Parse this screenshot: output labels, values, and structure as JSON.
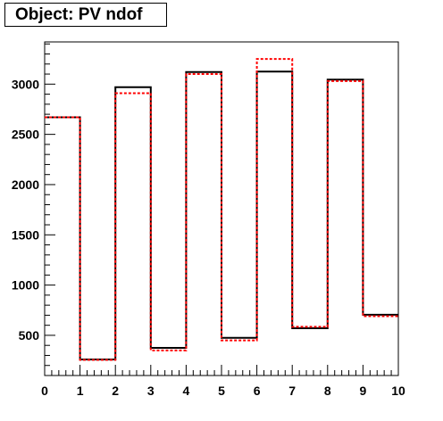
{
  "chart_data": {
    "type": "line",
    "title": "Object: PV ndof",
    "xlabel": "",
    "ylabel": "",
    "xlim": [
      0,
      10
    ],
    "ylim": [
      100,
      3420
    ],
    "x_ticks": [
      0,
      1,
      2,
      3,
      4,
      5,
      6,
      7,
      8,
      9,
      10
    ],
    "y_ticks": [
      500,
      1000,
      1500,
      2000,
      2500,
      3000
    ],
    "bin_edges": [
      0,
      1,
      2,
      3,
      4,
      5,
      6,
      7,
      8,
      9,
      10
    ],
    "grid": false,
    "series": [
      {
        "color": "#000000",
        "style": "solid",
        "values": [
          2670,
          260,
          2970,
          375,
          3120,
          475,
          3125,
          570,
          3045,
          705
        ]
      },
      {
        "color": "#ff0000",
        "style": "dashed",
        "values": [
          2670,
          255,
          2910,
          350,
          3100,
          450,
          3250,
          585,
          3030,
          690
        ]
      }
    ]
  }
}
